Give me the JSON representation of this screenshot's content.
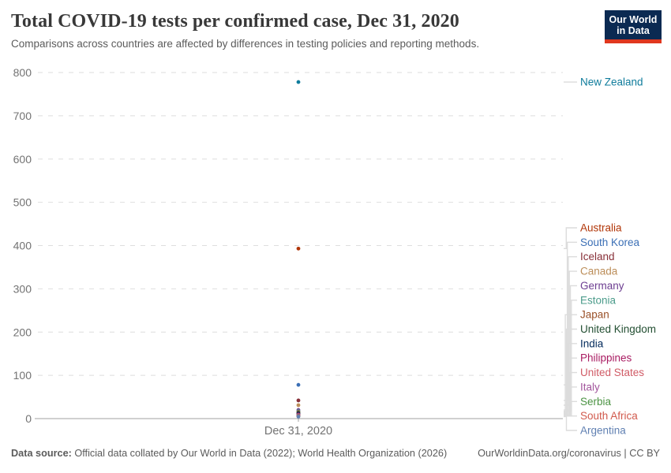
{
  "header": {
    "title": "Total COVID-19 tests per confirmed case, Dec 31, 2020",
    "subtitle": "Comparisons across countries are affected by differences in testing policies and reporting methods."
  },
  "logo": {
    "line1": "Our World",
    "line2": "in Data",
    "bg_color": "#0b2a52",
    "accent_color": "#e0371e"
  },
  "footer": {
    "source_label": "Data source:",
    "source_text": " Official data collated by Our World in Data (2022); World Health Organization (2026)",
    "right_text": "OurWorldinData.org/coronavirus | CC BY"
  },
  "chart_data": {
    "type": "scatter",
    "title": "Total COVID-19 tests per confirmed case, Dec 31, 2020",
    "xlabel": "",
    "ylabel": "",
    "x_tick_label": "Dec 31, 2020",
    "y_ticks": [
      0,
      100,
      200,
      300,
      400,
      500,
      600,
      700,
      800
    ],
    "ylim": [
      0,
      800
    ],
    "grid": "dashed-horizontal",
    "axis_color": "#a1a1a1",
    "grid_color": "#dedede",
    "tick_label_color": "#737373",
    "connector_color": "#dcdcdc",
    "points": [
      {
        "label": "New Zealand",
        "value": 778,
        "color": "#0f7c9c"
      },
      {
        "label": "Australia",
        "value": 393,
        "color": "#b13507"
      },
      {
        "label": "South Korea",
        "value": 78,
        "color": "#3b6fb5"
      },
      {
        "label": "Iceland",
        "value": 42,
        "color": "#883039"
      },
      {
        "label": "Canada",
        "value": 31,
        "color": "#bc8e5a"
      },
      {
        "label": "Germany",
        "value": 20,
        "color": "#6d3e91"
      },
      {
        "label": "Estonia",
        "value": 17,
        "color": "#4c9c8b"
      },
      {
        "label": "Japan",
        "value": 15,
        "color": "#9a5129"
      },
      {
        "label": "United Kingdom",
        "value": 13,
        "color": "#234f32"
      },
      {
        "label": "India",
        "value": 11.5,
        "color": "#00295b"
      },
      {
        "label": "Philippines",
        "value": 9.6,
        "color": "#a91c62"
      },
      {
        "label": "United States",
        "value": 8.2,
        "color": "#d05b66"
      },
      {
        "label": "Italy",
        "value": 7.6,
        "color": "#a2559c"
      },
      {
        "label": "Serbia",
        "value": 6.1,
        "color": "#4b9343"
      },
      {
        "label": "South Africa",
        "value": 5.4,
        "color": "#d15a4d"
      },
      {
        "label": "Argentina",
        "value": 4.6,
        "color": "#6080b2"
      }
    ]
  }
}
